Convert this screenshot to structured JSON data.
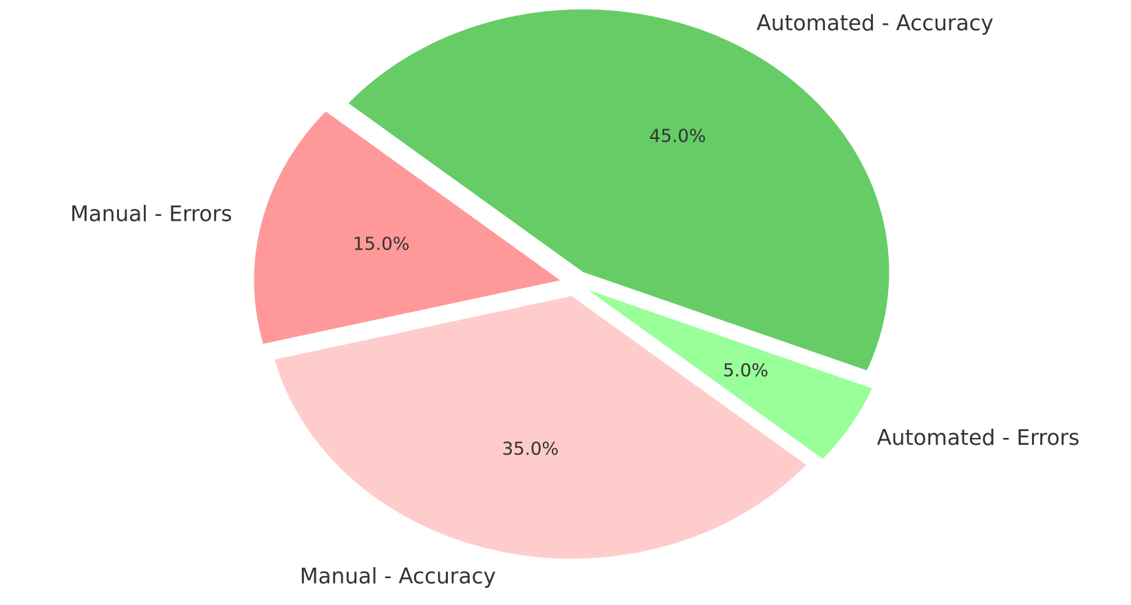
{
  "chart_data": {
    "type": "pie",
    "categories": [
      "Manual - Errors",
      "Manual - Accuracy",
      "Automated - Errors",
      "Automated - Accuracy"
    ],
    "values": [
      15,
      35,
      5,
      45
    ],
    "value_labels": [
      "15.0%",
      "35.0%",
      "5.0%",
      "45.0%"
    ],
    "colors": [
      "#ff9999",
      "#ffcccc",
      "#99ff99",
      "#66cc66"
    ]
  }
}
